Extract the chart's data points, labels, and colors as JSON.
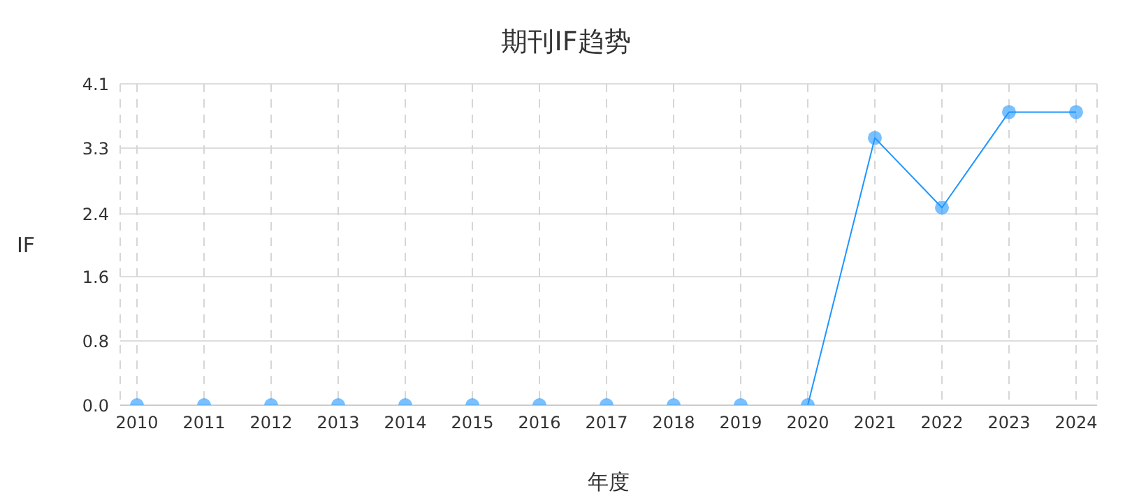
{
  "chart_data": {
    "type": "line",
    "title": "期刊IF趋势",
    "xlabel": "年度",
    "ylabel": "IF",
    "categories": [
      "2010",
      "2011",
      "2012",
      "2013",
      "2014",
      "2015",
      "2016",
      "2017",
      "2018",
      "2019",
      "2020",
      "2021",
      "2022",
      "2023",
      "2024"
    ],
    "series": [
      {
        "color": "#1e96ff",
        "values": [
          0,
          0,
          0,
          0,
          0,
          0,
          0,
          0,
          0,
          0,
          0,
          3.41,
          2.52,
          3.74,
          3.74
        ]
      }
    ],
    "ylim": [
      0,
      4.1
    ],
    "yticks": [
      {
        "value": 0,
        "label": "0.0"
      },
      {
        "value": 0.82,
        "label": "0.8"
      },
      {
        "value": 1.64,
        "label": "1.6"
      },
      {
        "value": 2.44,
        "label": "2.4"
      },
      {
        "value": 3.28,
        "label": "3.3"
      },
      4.1
    ],
    "grid": true,
    "marker": "circle",
    "line_style": "solid",
    "legend": false
  }
}
